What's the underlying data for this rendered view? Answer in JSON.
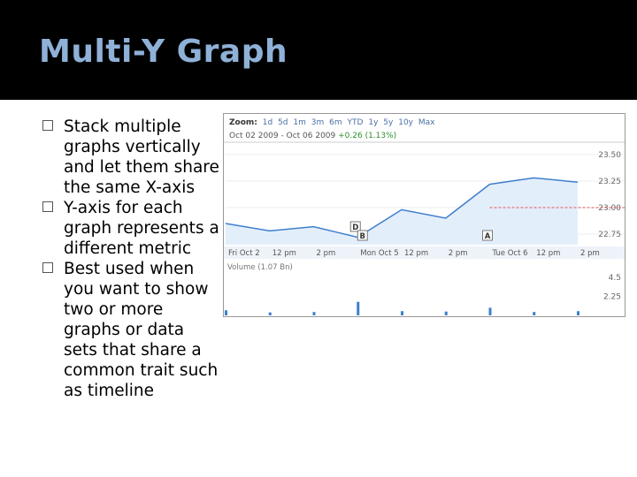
{
  "slide": {
    "title": "Multi-Y Graph",
    "bullets": [
      "Stack multiple graphs vertically and let them share the same X-axis",
      "Y-axis for each graph represents a different metric",
      "Best used when you want to show two or more graphs or data sets that share a common trait such as timeline"
    ]
  },
  "chart": {
    "zoom_label": "Zoom:",
    "zoom_options": [
      "1d",
      "5d",
      "1m",
      "3m",
      "6m",
      "YTD",
      "1y",
      "5y",
      "10y",
      "Max"
    ],
    "range_text": "Oct 02 2009 - Oct 06 2009",
    "range_change": "+0.26 (1.13%)",
    "price_ticks": [
      "23.50",
      "23.25",
      "23.00",
      "22.75"
    ],
    "time_labels": [
      "Fri Oct 2",
      "12 pm",
      "2 pm",
      "Mon Oct 5",
      "12 pm",
      "2 pm",
      "Tue Oct 6",
      "12 pm",
      "2 pm"
    ],
    "volume_label": "Volume (1.07 Bn)",
    "volume_ticks": [
      "4.5",
      "2.25"
    ],
    "markers": [
      "D",
      "B",
      "A"
    ],
    "line_color": "#3f7fce",
    "fill_color": "#e3eefb"
  },
  "chart_data": {
    "type": "line",
    "x": [
      "Fri Oct 2",
      "12 pm",
      "2 pm",
      "Mon Oct 5",
      "12 pm",
      "2 pm",
      "Tue Oct 6",
      "12 pm",
      "2 pm"
    ],
    "series": [
      {
        "values": [
          22.85,
          22.78,
          22.82,
          22.72,
          22.98,
          22.9,
          23.22,
          23.28,
          23.24
        ]
      }
    ],
    "ylim": [
      22.65,
      23.55
    ],
    "yticks": [
      23.5,
      23.25,
      23.0,
      22.75
    ],
    "volume": {
      "values": [
        0.6,
        0.35,
        0.4,
        1.6,
        0.5,
        0.45,
        0.9,
        0.4,
        0.5
      ],
      "ylim": [
        0,
        4.5
      ],
      "yticks": [
        4.5,
        2.25
      ]
    }
  }
}
